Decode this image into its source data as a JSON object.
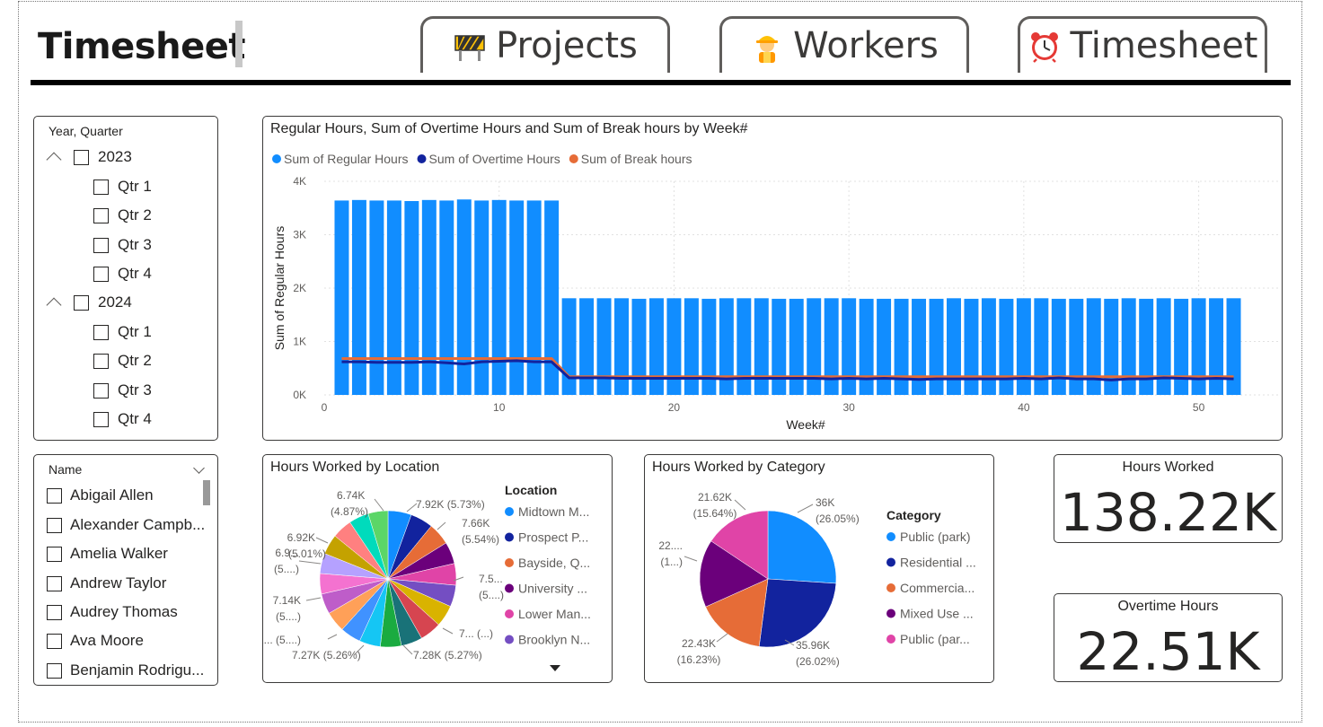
{
  "header": {
    "title": "Timesheet",
    "tabs": [
      {
        "label": "Projects",
        "icon": "construction-barrier-icon"
      },
      {
        "label": "Workers",
        "icon": "construction-worker-icon"
      },
      {
        "label": "Timesheet",
        "icon": "alarm-clock-icon"
      }
    ]
  },
  "year_slicer": {
    "title": "Year, Quarter",
    "years": [
      {
        "year": "2023",
        "quarters": [
          "Qtr 1",
          "Qtr 2",
          "Qtr 3",
          "Qtr 4"
        ]
      },
      {
        "year": "2024",
        "quarters": [
          "Qtr 1",
          "Qtr 2",
          "Qtr 3",
          "Qtr 4"
        ]
      }
    ]
  },
  "name_slicer": {
    "title": "Name",
    "items": [
      "Abigail Allen",
      "Alexander Campb...",
      "Amelia Walker",
      "Andrew Taylor",
      "Audrey Thomas",
      "Ava Moore",
      "Benjamin Rodrigu..."
    ]
  },
  "combo_chart": {
    "title": "Regular Hours, Sum of Overtime Hours and Sum of Break hours by Week#",
    "legend": [
      "Sum of Regular Hours",
      "Sum of Overtime Hours",
      "Sum of Break hours"
    ],
    "colors": {
      "regular": "#118DFF",
      "overtime": "#12239E",
      "break": "#E66C37"
    },
    "xlabel": "Week#",
    "ylabel": "Sum of Regular Hours",
    "y_ticks": [
      "4K",
      "3K",
      "2K",
      "1K",
      "0K"
    ],
    "x_ticks": [
      "0",
      "10",
      "20",
      "30",
      "40",
      "50"
    ]
  },
  "location_chart": {
    "title": "Hours Worked by Location",
    "legend_title": "Location",
    "legend": [
      {
        "label": "Midtown M...",
        "color": "#118DFF"
      },
      {
        "label": "Prospect P...",
        "color": "#12239E"
      },
      {
        "label": "Bayside, Q...",
        "color": "#E66C37"
      },
      {
        "label": "University ...",
        "color": "#6B007B"
      },
      {
        "label": "Lower Man...",
        "color": "#E044A7"
      },
      {
        "label": "Brooklyn N...",
        "color": "#744EC2"
      }
    ],
    "labels": [
      "6.74K",
      "(4.87%)",
      "7.92K (5.73%)",
      "7.66K",
      "(5.54%)",
      "6.92K",
      "(5.01%)",
      "6.9...",
      "(5....)",
      "7.5...",
      "(5....)",
      "7.14K",
      "(5....)",
      "7... (...)",
      "7.1... (5....)",
      "7.27K (5.26%)",
      "7.28K (5.27%)"
    ]
  },
  "category_chart": {
    "title": "Hours Worked by Category",
    "legend_title": "Category",
    "legend": [
      {
        "label": "Public (park)",
        "color": "#118DFF"
      },
      {
        "label": "Residential ...",
        "color": "#12239E"
      },
      {
        "label": "Commercia...",
        "color": "#E66C37"
      },
      {
        "label": "Mixed Use ...",
        "color": "#6B007B"
      },
      {
        "label": "Public (par...",
        "color": "#E044A7"
      }
    ],
    "labels": [
      "36K",
      "(26.05%)",
      "35.96K",
      "(26.02%)",
      "22.43K",
      "(16.23%)",
      "22....",
      "(1...)",
      "21.62K",
      "(15.64%)"
    ]
  },
  "kpis": {
    "hours_worked": {
      "title": "Hours Worked",
      "value": "138.22K"
    },
    "overtime_hours": {
      "title": "Overtime Hours",
      "value": "22.51K"
    }
  },
  "chart_data": [
    {
      "type": "bar",
      "title": "Regular Hours, Sum of Overtime Hours and Sum of Break hours by Week#",
      "xlabel": "Week#",
      "ylabel": "Sum of Regular Hours",
      "ylim": [
        0,
        4000
      ],
      "xlim": [
        0,
        53
      ],
      "grid": true,
      "legend_position": "top-left",
      "x": [
        1,
        2,
        3,
        4,
        5,
        6,
        7,
        8,
        9,
        10,
        11,
        12,
        13,
        14,
        15,
        16,
        17,
        18,
        19,
        20,
        21,
        22,
        23,
        24,
        25,
        26,
        27,
        28,
        29,
        30,
        31,
        32,
        33,
        34,
        35,
        36,
        37,
        38,
        39,
        40,
        41,
        42,
        43,
        44,
        45,
        46,
        47,
        48,
        49,
        50,
        51,
        52
      ],
      "series": [
        {
          "name": "Sum of Regular Hours",
          "kind": "bar",
          "values": [
            3640,
            3650,
            3640,
            3640,
            3630,
            3650,
            3640,
            3660,
            3640,
            3650,
            3640,
            3640,
            3640,
            1810,
            1810,
            1810,
            1810,
            1800,
            1810,
            1810,
            1810,
            1800,
            1810,
            1810,
            1810,
            1800,
            1800,
            1810,
            1810,
            1810,
            1800,
            1800,
            1800,
            1800,
            1800,
            1810,
            1800,
            1810,
            1800,
            1810,
            1810,
            1800,
            1800,
            1810,
            1800,
            1810,
            1800,
            1810,
            1800,
            1810,
            1810,
            1810
          ]
        },
        {
          "name": "Sum of Overtime Hours",
          "kind": "line",
          "values": [
            620,
            620,
            610,
            610,
            610,
            620,
            600,
            580,
            620,
            630,
            640,
            620,
            620,
            320,
            320,
            320,
            310,
            310,
            310,
            310,
            310,
            310,
            300,
            310,
            310,
            310,
            310,
            310,
            300,
            310,
            300,
            310,
            300,
            290,
            300,
            300,
            300,
            300,
            300,
            310,
            300,
            320,
            300,
            300,
            280,
            300,
            300,
            320,
            310,
            300,
            310,
            300
          ]
        },
        {
          "name": "Sum of Break hours",
          "kind": "line",
          "values": [
            680,
            680,
            680,
            680,
            680,
            680,
            680,
            680,
            680,
            680,
            680,
            680,
            680,
            340,
            340,
            340,
            340,
            340,
            340,
            340,
            340,
            340,
            340,
            340,
            340,
            340,
            340,
            340,
            340,
            340,
            340,
            340,
            340,
            340,
            340,
            340,
            340,
            340,
            340,
            340,
            340,
            340,
            340,
            340,
            340,
            340,
            340,
            340,
            340,
            340,
            340,
            340
          ]
        }
      ]
    },
    {
      "type": "pie",
      "title": "Hours Worked by Location",
      "categories": [
        "Midtown M...",
        "Prospect P...",
        "Bayside, Q...",
        "University ...",
        "Lower Man...",
        "Brooklyn N...",
        "",
        "",
        "",
        "",
        "",
        "",
        "",
        "",
        "",
        "",
        "",
        "",
        "",
        ""
      ],
      "values": [
        7.92,
        7.66,
        7.5,
        7.4,
        7.35,
        7.3,
        7.28,
        7.27,
        7.2,
        7.1,
        7.14,
        7.0,
        6.95,
        6.9,
        6.92,
        6.85,
        6.8,
        6.78,
        6.74,
        6.7
      ],
      "colors": [
        "#118DFF",
        "#12239E",
        "#E66C37",
        "#6B007B",
        "#E044A7",
        "#744EC2",
        "#D9B300",
        "#D64550",
        "#197278",
        "#1AAB40",
        "#15C6F4",
        "#4092FF",
        "#FFA058",
        "#BE5DC9",
        "#F472D0",
        "#B5A1FF",
        "#C4A200",
        "#FF8080",
        "#00DBBC",
        "#5BD667"
      ]
    },
    {
      "type": "pie",
      "title": "Hours Worked by Category",
      "categories": [
        "Public (park)",
        "Residential ...",
        "Commercia...",
        "Mixed Use ...",
        "Public (par..."
      ],
      "values": [
        36000,
        35960,
        22430,
        22210,
        21620
      ],
      "colors": [
        "#118DFF",
        "#12239E",
        "#E66C37",
        "#6B007B",
        "#E044A7"
      ]
    }
  ]
}
